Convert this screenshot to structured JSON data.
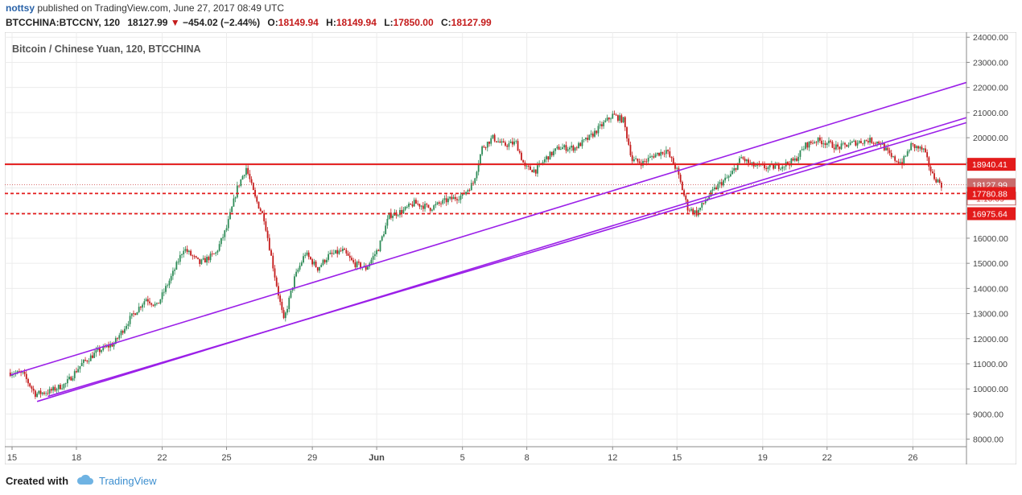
{
  "header": {
    "user": "nottsy",
    "published_text": " published on TradingView.com, June 27, 2017 08:49 UTC",
    "symbol": "BTCCHINA:BTCCNY, 120",
    "last": "18127.99",
    "change_arrow": "▼",
    "change": "−454.02 (−2.44%)",
    "o_label": "O:",
    "o_value": "18149.94",
    "h_label": "H:",
    "h_value": "18149.94",
    "l_label": "L:",
    "l_value": "17850.00",
    "c_label": "C:",
    "c_value": "18127.99"
  },
  "footer": {
    "created_with": "Created with",
    "brand": "TradingView"
  },
  "colors": {
    "up": "#2e8b57",
    "down": "#c41b1b",
    "channel": "#9b1fe8",
    "level": "#e31b1b"
  },
  "chart_data": {
    "type": "candlestick",
    "title": "Bitcoin / Chinese Yuan, 120, BTCCHINA",
    "ylim": [
      7700,
      24200
    ],
    "yticks": [
      8000,
      9000,
      10000,
      11000,
      12000,
      13000,
      14000,
      15000,
      16000,
      17000,
      18000,
      19000,
      20000,
      21000,
      22000,
      23000,
      24000
    ],
    "ytick_labels": [
      "8000.00",
      "9000.00",
      "10000.00",
      "11000.00",
      "12000.00",
      "13000.00",
      "14000.00",
      "15000.00",
      "16000.00",
      "17000.00",
      "18000.00",
      "19000.00",
      "20000.00",
      "21000.00",
      "22000.00",
      "23000.00",
      "24000.00"
    ],
    "xaxis_start": "2017-05-15",
    "xaxis_end": "2017-06-28T12:00",
    "xticks": [
      {
        "date": "2017-05-15",
        "label": "15"
      },
      {
        "date": "2017-05-18",
        "label": "18"
      },
      {
        "date": "2017-05-22",
        "label": "22"
      },
      {
        "date": "2017-05-25",
        "label": "25"
      },
      {
        "date": "2017-05-29",
        "label": "29"
      },
      {
        "date": "2017-06-01",
        "label": "Jun"
      },
      {
        "date": "2017-06-05",
        "label": "5"
      },
      {
        "date": "2017-06-08",
        "label": "8"
      },
      {
        "date": "2017-06-12",
        "label": "12"
      },
      {
        "date": "2017-06-15",
        "label": "15"
      },
      {
        "date": "2017-06-19",
        "label": "19"
      },
      {
        "date": "2017-06-22",
        "label": "22"
      },
      {
        "date": "2017-06-26",
        "label": "26"
      }
    ],
    "price_path": [
      [
        "2017-05-14T22:00",
        10650
      ],
      [
        "2017-05-15T12:00",
        10600
      ],
      [
        "2017-05-16T02:00",
        9800
      ],
      [
        "2017-05-16T18:00",
        9900
      ],
      [
        "2017-05-17T12:00",
        10200
      ],
      [
        "2017-05-18T06:00",
        11000
      ],
      [
        "2017-05-19T00:00",
        11500
      ],
      [
        "2017-05-19T18:00",
        11800
      ],
      [
        "2017-05-20T12:00",
        12800
      ],
      [
        "2017-05-21T06:00",
        13600
      ],
      [
        "2017-05-21T18:00",
        13300
      ],
      [
        "2017-05-22T12:00",
        14600
      ],
      [
        "2017-05-23T00:00",
        15600
      ],
      [
        "2017-05-23T18:00",
        15000
      ],
      [
        "2017-05-24T12:00",
        15400
      ],
      [
        "2017-05-25T00:00",
        16400
      ],
      [
        "2017-05-25T12:00",
        18000
      ],
      [
        "2017-05-25T22:00",
        18800
      ],
      [
        "2017-05-26T08:00",
        17600
      ],
      [
        "2017-05-26T18:00",
        16800
      ],
      [
        "2017-05-27T06:00",
        14500
      ],
      [
        "2017-05-27T16:00",
        12700
      ],
      [
        "2017-05-28T04:00",
        14400
      ],
      [
        "2017-05-28T16:00",
        15400
      ],
      [
        "2017-05-29T06:00",
        14800
      ],
      [
        "2017-05-29T18:00",
        15300
      ],
      [
        "2017-05-30T10:00",
        15500
      ],
      [
        "2017-05-30T22:00",
        15000
      ],
      [
        "2017-05-31T12:00",
        14800
      ],
      [
        "2017-06-01T02:00",
        15600
      ],
      [
        "2017-06-01T14:00",
        16900
      ],
      [
        "2017-06-02T06:00",
        17100
      ],
      [
        "2017-06-02T18:00",
        17400
      ],
      [
        "2017-06-03T12:00",
        17200
      ],
      [
        "2017-06-04T06:00",
        17500
      ],
      [
        "2017-06-05T00:00",
        17700
      ],
      [
        "2017-06-05T12:00",
        18200
      ],
      [
        "2017-06-05T22:00",
        19600
      ],
      [
        "2017-06-06T10:00",
        20000
      ],
      [
        "2017-06-06T22:00",
        19700
      ],
      [
        "2017-06-07T12:00",
        19800
      ],
      [
        "2017-06-07T22:00",
        18800
      ],
      [
        "2017-06-08T10:00",
        18700
      ],
      [
        "2017-06-08T22:00",
        19200
      ],
      [
        "2017-06-09T12:00",
        19600
      ],
      [
        "2017-06-10T06:00",
        19600
      ],
      [
        "2017-06-10T22:00",
        20000
      ],
      [
        "2017-06-11T12:00",
        20500
      ],
      [
        "2017-06-12T00:00",
        20900
      ],
      [
        "2017-06-12T12:00",
        20700
      ],
      [
        "2017-06-12T22:00",
        19100
      ],
      [
        "2017-06-13T10:00",
        19000
      ],
      [
        "2017-06-13T22:00",
        19300
      ],
      [
        "2017-06-14T12:00",
        19500
      ],
      [
        "2017-06-15T00:00",
        18700
      ],
      [
        "2017-06-15T12:00",
        17200
      ],
      [
        "2017-06-15T22:00",
        17000
      ],
      [
        "2017-06-16T10:00",
        17600
      ],
      [
        "2017-06-16T22:00",
        18100
      ],
      [
        "2017-06-17T12:00",
        18500
      ],
      [
        "2017-06-18T00:00",
        19200
      ],
      [
        "2017-06-18T12:00",
        18900
      ],
      [
        "2017-06-19T06:00",
        18800
      ],
      [
        "2017-06-19T22:00",
        18900
      ],
      [
        "2017-06-20T12:00",
        19100
      ],
      [
        "2017-06-21T00:00",
        19700
      ],
      [
        "2017-06-21T12:00",
        19900
      ],
      [
        "2017-06-22T00:00",
        19800
      ],
      [
        "2017-06-22T12:00",
        19600
      ],
      [
        "2017-06-23T06:00",
        19800
      ],
      [
        "2017-06-23T22:00",
        19900
      ],
      [
        "2017-06-24T12:00",
        19800
      ],
      [
        "2017-06-25T00:00",
        19200
      ],
      [
        "2017-06-25T12:00",
        19000
      ],
      [
        "2017-06-25T22:00",
        19700
      ],
      [
        "2017-06-26T12:00",
        19500
      ],
      [
        "2017-06-26T22:00",
        18500
      ],
      [
        "2017-06-27T08:00",
        18128
      ]
    ],
    "horizontal_levels": [
      {
        "value": 18940.41,
        "label": "18940.41",
        "style": "solid"
      },
      {
        "value": 17780.88,
        "label": "17780.88",
        "style": "dashed"
      },
      {
        "value": 16975.64,
        "label": "16975.64",
        "style": "dashed"
      }
    ],
    "last_price": {
      "value": 18127.99,
      "label": "18127.99",
      "countdown": "1:10:09"
    },
    "trendlines": [
      {
        "from": [
          "2017-05-14T22:00",
          10550
        ],
        "to": [
          "2017-06-28T12:00",
          22200
        ]
      },
      {
        "from": [
          "2017-05-16T04:00",
          9500
        ],
        "to": [
          "2017-06-28T12:00",
          20800
        ]
      },
      {
        "from": [
          "2017-05-16T16:00",
          9700
        ],
        "to": [
          "2017-06-28T12:00",
          20600
        ]
      }
    ]
  }
}
